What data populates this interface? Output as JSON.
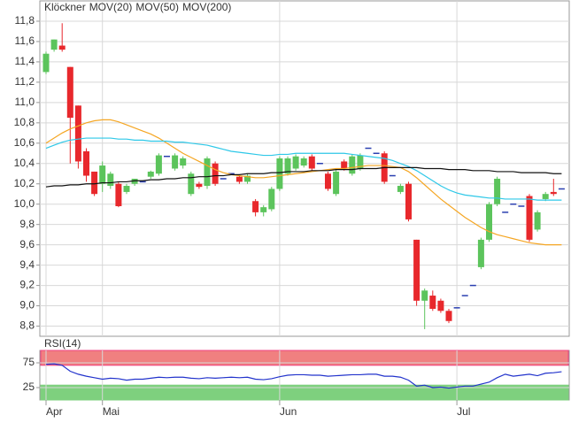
{
  "chart_data": [
    {
      "type": "candlestick",
      "categories": [
        "Apr",
        null,
        null,
        null,
        null,
        null,
        null,
        "Mai",
        null,
        null,
        null,
        null,
        null,
        null,
        null,
        null,
        null,
        null,
        null,
        null,
        null,
        null,
        null,
        null,
        null,
        null,
        null,
        null,
        null,
        "Jun",
        null,
        null,
        null,
        null,
        null,
        null,
        null,
        null,
        null,
        null,
        null,
        null,
        null,
        null,
        null,
        null,
        null,
        null,
        null,
        null,
        null,
        "Jul",
        null,
        null,
        null,
        null,
        null,
        null,
        null,
        null,
        null,
        null,
        null,
        null,
        null
      ],
      "ylim": [
        8.7,
        12.0
      ],
      "yticks": [
        {
          "value": 8.8,
          "label": "8,8"
        },
        {
          "value": 9.0,
          "label": "9,0"
        },
        {
          "value": 9.2,
          "label": "9,2"
        },
        {
          "value": 9.4,
          "label": "9,4"
        },
        {
          "value": 9.6,
          "label": "9,6"
        },
        {
          "value": 9.8,
          "label": "9,8"
        },
        {
          "value": 10.0,
          "label": "10,0"
        },
        {
          "value": 10.2,
          "label": "10,2"
        },
        {
          "value": 10.4,
          "label": "10,4"
        },
        {
          "value": 10.6,
          "label": "10,6"
        },
        {
          "value": 10.8,
          "label": "10,8"
        },
        {
          "value": 11.0,
          "label": "11,0"
        },
        {
          "value": 11.2,
          "label": "11,2"
        },
        {
          "value": 11.4,
          "label": "11,4"
        },
        {
          "value": 11.6,
          "label": "11,6"
        },
        {
          "value": 11.8,
          "label": "11,8"
        }
      ],
      "grid": true,
      "up_color": "#5cc45c",
      "down_color": "#e8282c",
      "flat_color": "#2a3fb0",
      "series": [
        {
          "name": "Klöckner",
          "color": "#e8282c",
          "open": [
            11.3,
            11.52,
            11.56,
            11.35,
            10.97,
            10.52,
            10.32,
            10.2,
            10.18,
            10.2,
            10.12,
            10.2,
            10.22,
            10.27,
            10.3,
            10.47,
            10.35,
            10.38,
            10.1,
            10.2,
            10.18,
            10.4,
            10.25,
            10.3,
            10.27,
            10.22,
            10.03,
            9.92,
            9.95,
            10.15,
            10.3,
            10.35,
            10.38,
            10.47,
            10.4,
            10.3,
            10.1,
            10.42,
            10.3,
            10.35,
            10.55,
            10.5,
            10.5,
            10.28,
            10.12,
            10.2,
            9.65,
            9.05,
            9.1,
            9.05,
            8.95,
            8.98,
            9.1,
            9.2,
            9.38,
            9.65,
            10.0,
            9.92,
            10.0,
            9.98,
            10.08,
            9.75,
            10.05,
            10.12,
            10.15
          ],
          "high": [
            11.5,
            11.62,
            11.78,
            11.35,
            10.97,
            10.55,
            10.32,
            10.42,
            10.32,
            10.22,
            10.2,
            10.25,
            10.22,
            10.33,
            10.5,
            10.47,
            10.5,
            10.47,
            10.32,
            10.22,
            10.47,
            10.42,
            10.25,
            10.3,
            10.29,
            10.3,
            10.05,
            9.99,
            10.17,
            10.47,
            10.47,
            10.49,
            10.47,
            10.49,
            10.4,
            10.32,
            10.34,
            10.44,
            10.49,
            10.5,
            10.55,
            10.5,
            10.52,
            10.28,
            10.2,
            10.22,
            9.65,
            9.17,
            9.15,
            9.07,
            8.97,
            8.98,
            9.1,
            9.2,
            9.67,
            10.02,
            10.27,
            9.92,
            10.0,
            9.98,
            10.1,
            9.94,
            10.12,
            10.25,
            10.15
          ],
          "low": [
            11.28,
            11.5,
            11.5,
            10.4,
            10.35,
            10.22,
            10.08,
            10.12,
            10.15,
            9.97,
            10.1,
            10.18,
            10.22,
            10.25,
            10.28,
            10.47,
            10.33,
            10.35,
            10.08,
            10.15,
            10.15,
            10.18,
            10.25,
            10.3,
            10.2,
            10.2,
            9.88,
            9.88,
            9.93,
            10.13,
            10.28,
            10.33,
            10.36,
            10.33,
            10.4,
            10.13,
            10.08,
            10.33,
            10.28,
            10.33,
            10.55,
            10.5,
            10.2,
            10.28,
            10.1,
            9.83,
            9.0,
            8.77,
            8.95,
            8.93,
            8.83,
            8.98,
            9.1,
            9.2,
            9.36,
            9.63,
            9.98,
            9.92,
            10.0,
            9.98,
            9.63,
            9.73,
            10.03,
            10.08,
            10.15
          ],
          "close": [
            11.48,
            11.62,
            11.52,
            10.85,
            10.42,
            10.28,
            10.1,
            10.38,
            10.3,
            9.98,
            10.18,
            10.25,
            10.22,
            10.32,
            10.48,
            10.47,
            10.48,
            10.45,
            10.3,
            10.17,
            10.45,
            10.2,
            10.25,
            10.3,
            10.22,
            10.28,
            9.92,
            9.97,
            10.15,
            10.45,
            10.45,
            10.47,
            10.45,
            10.35,
            10.4,
            10.15,
            10.32,
            10.35,
            10.47,
            10.48,
            10.55,
            10.5,
            10.22,
            10.28,
            10.18,
            9.85,
            9.05,
            9.15,
            8.97,
            8.95,
            8.85,
            8.98,
            9.1,
            9.2,
            9.65,
            10.0,
            10.25,
            9.92,
            10.0,
            9.98,
            9.65,
            9.92,
            10.1,
            10.1,
            10.15
          ]
        },
        {
          "name": "MOV(20)",
          "color": "#f5a623",
          "values": [
            10.6,
            10.65,
            10.7,
            10.74,
            10.77,
            10.8,
            10.82,
            10.83,
            10.83,
            10.81,
            10.78,
            10.75,
            10.72,
            10.69,
            10.65,
            10.6,
            10.55,
            10.5,
            10.46,
            10.42,
            10.38,
            10.34,
            10.31,
            10.29,
            10.28,
            10.27,
            10.26,
            10.26,
            10.27,
            10.28,
            10.29,
            10.3,
            10.31,
            10.32,
            10.33,
            10.34,
            10.35,
            10.35,
            10.36,
            10.37,
            10.38,
            10.38,
            10.38,
            10.37,
            10.36,
            10.32,
            10.26,
            10.19,
            10.12,
            10.05,
            9.99,
            9.93,
            9.87,
            9.82,
            9.77,
            9.73,
            9.7,
            9.68,
            9.66,
            9.64,
            9.62,
            9.61,
            9.6,
            9.6,
            9.6
          ]
        },
        {
          "name": "MOV(50)",
          "color": "#2ec8e8",
          "values": [
            10.55,
            10.58,
            10.61,
            10.63,
            10.64,
            10.65,
            10.65,
            10.65,
            10.65,
            10.64,
            10.64,
            10.63,
            10.63,
            10.62,
            10.62,
            10.62,
            10.61,
            10.61,
            10.6,
            10.59,
            10.58,
            10.56,
            10.54,
            10.52,
            10.51,
            10.5,
            10.49,
            10.48,
            10.48,
            10.49,
            10.49,
            10.5,
            10.5,
            10.5,
            10.5,
            10.5,
            10.5,
            10.5,
            10.49,
            10.48,
            10.47,
            10.46,
            10.45,
            10.43,
            10.4,
            10.37,
            10.33,
            10.28,
            10.23,
            10.18,
            10.14,
            10.11,
            10.09,
            10.08,
            10.07,
            10.06,
            10.06,
            10.05,
            10.05,
            10.05,
            10.05,
            10.04,
            10.04,
            10.04,
            10.04
          ]
        },
        {
          "name": "MOV(200)",
          "color": "#111111",
          "values": [
            10.17,
            10.18,
            10.18,
            10.19,
            10.19,
            10.2,
            10.2,
            10.21,
            10.21,
            10.22,
            10.22,
            10.23,
            10.23,
            10.24,
            10.24,
            10.25,
            10.25,
            10.26,
            10.26,
            10.27,
            10.27,
            10.28,
            10.28,
            10.29,
            10.29,
            10.3,
            10.3,
            10.3,
            10.31,
            10.31,
            10.32,
            10.32,
            10.32,
            10.33,
            10.33,
            10.33,
            10.34,
            10.34,
            10.34,
            10.35,
            10.35,
            10.35,
            10.36,
            10.36,
            10.36,
            10.36,
            10.36,
            10.35,
            10.35,
            10.35,
            10.34,
            10.34,
            10.34,
            10.33,
            10.33,
            10.33,
            10.32,
            10.32,
            10.32,
            10.31,
            10.31,
            10.31,
            10.31,
            10.3,
            10.3
          ]
        }
      ]
    },
    {
      "type": "line",
      "ylim": [
        0,
        100
      ],
      "yticks": [
        25,
        75
      ],
      "grid": true,
      "bands": [
        {
          "from": 70,
          "to": 100,
          "color": "#f08080"
        },
        {
          "from": 0,
          "to": 30,
          "color": "#7ed07e"
        }
      ],
      "series": [
        {
          "name": "RSI(14)",
          "color": "#2233cc",
          "values": [
            72,
            73,
            70,
            58,
            52,
            48,
            45,
            42,
            44,
            43,
            40,
            42,
            42,
            44,
            46,
            45,
            46,
            46,
            44,
            43,
            45,
            44,
            45,
            46,
            45,
            46,
            42,
            41,
            43,
            47,
            50,
            51,
            51,
            50,
            50,
            48,
            49,
            50,
            51,
            51,
            52,
            52,
            48,
            48,
            46,
            40,
            28,
            30,
            25,
            26,
            24,
            26,
            28,
            28,
            32,
            36,
            45,
            52,
            48,
            50,
            52,
            49,
            54,
            55,
            57
          ]
        }
      ]
    }
  ]
}
